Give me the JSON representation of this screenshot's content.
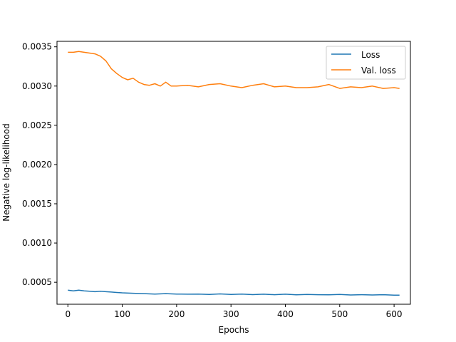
{
  "chart_data": {
    "type": "line",
    "xlabel": "Epochs",
    "ylabel": "Negative log-likelihood",
    "xlim": [
      -20,
      630
    ],
    "ylim": [
      0.00022,
      0.00357
    ],
    "xticks": [
      0,
      100,
      200,
      300,
      400,
      500,
      600
    ],
    "xtick_labels": [
      "0",
      "100",
      "200",
      "300",
      "400",
      "500",
      "600"
    ],
    "yticks": [
      0.0005,
      0.001,
      0.0015,
      0.002,
      0.0025,
      0.003,
      0.0035
    ],
    "ytick_labels": [
      "0.0005",
      "0.0010",
      "0.0015",
      "0.0020",
      "0.0025",
      "0.0030",
      "0.0035"
    ],
    "grid": false,
    "legend_position": "top-right",
    "series": [
      {
        "name": "Loss",
        "color": "#1f77b4",
        "x": [
          0,
          10,
          20,
          30,
          40,
          50,
          60,
          70,
          80,
          90,
          100,
          120,
          140,
          160,
          180,
          200,
          220,
          240,
          260,
          280,
          300,
          320,
          340,
          360,
          380,
          400,
          420,
          440,
          460,
          480,
          500,
          520,
          540,
          560,
          580,
          600,
          610
        ],
        "values": [
          0.0004,
          0.00039,
          0.0004,
          0.00039,
          0.000385,
          0.00038,
          0.000385,
          0.00038,
          0.000375,
          0.00037,
          0.000365,
          0.00036,
          0.000355,
          0.00035,
          0.000355,
          0.00035,
          0.000348,
          0.00035,
          0.000345,
          0.000352,
          0.000345,
          0.00035,
          0.000343,
          0.000348,
          0.000342,
          0.000348,
          0.00034,
          0.000345,
          0.000342,
          0.00034,
          0.000345,
          0.000338,
          0.000342,
          0.000338,
          0.000342,
          0.000336,
          0.000335
        ]
      },
      {
        "name": "Val. loss",
        "color": "#ff7f0e",
        "x": [
          0,
          10,
          20,
          30,
          40,
          50,
          60,
          70,
          80,
          90,
          100,
          110,
          120,
          130,
          140,
          150,
          160,
          170,
          180,
          190,
          200,
          220,
          240,
          260,
          280,
          300,
          320,
          340,
          360,
          380,
          400,
          420,
          440,
          460,
          480,
          500,
          520,
          540,
          560,
          580,
          600,
          610
        ],
        "values": [
          0.00343,
          0.00343,
          0.00344,
          0.00343,
          0.00342,
          0.00341,
          0.00338,
          0.00332,
          0.00322,
          0.00316,
          0.00311,
          0.00308,
          0.0031,
          0.00305,
          0.00302,
          0.00301,
          0.00303,
          0.003,
          0.00305,
          0.003,
          0.003,
          0.00301,
          0.00299,
          0.00302,
          0.00303,
          0.003,
          0.00298,
          0.00301,
          0.00303,
          0.00299,
          0.003,
          0.00298,
          0.00298,
          0.00299,
          0.00302,
          0.00297,
          0.00299,
          0.00298,
          0.003,
          0.00297,
          0.00298,
          0.00297
        ]
      }
    ]
  }
}
